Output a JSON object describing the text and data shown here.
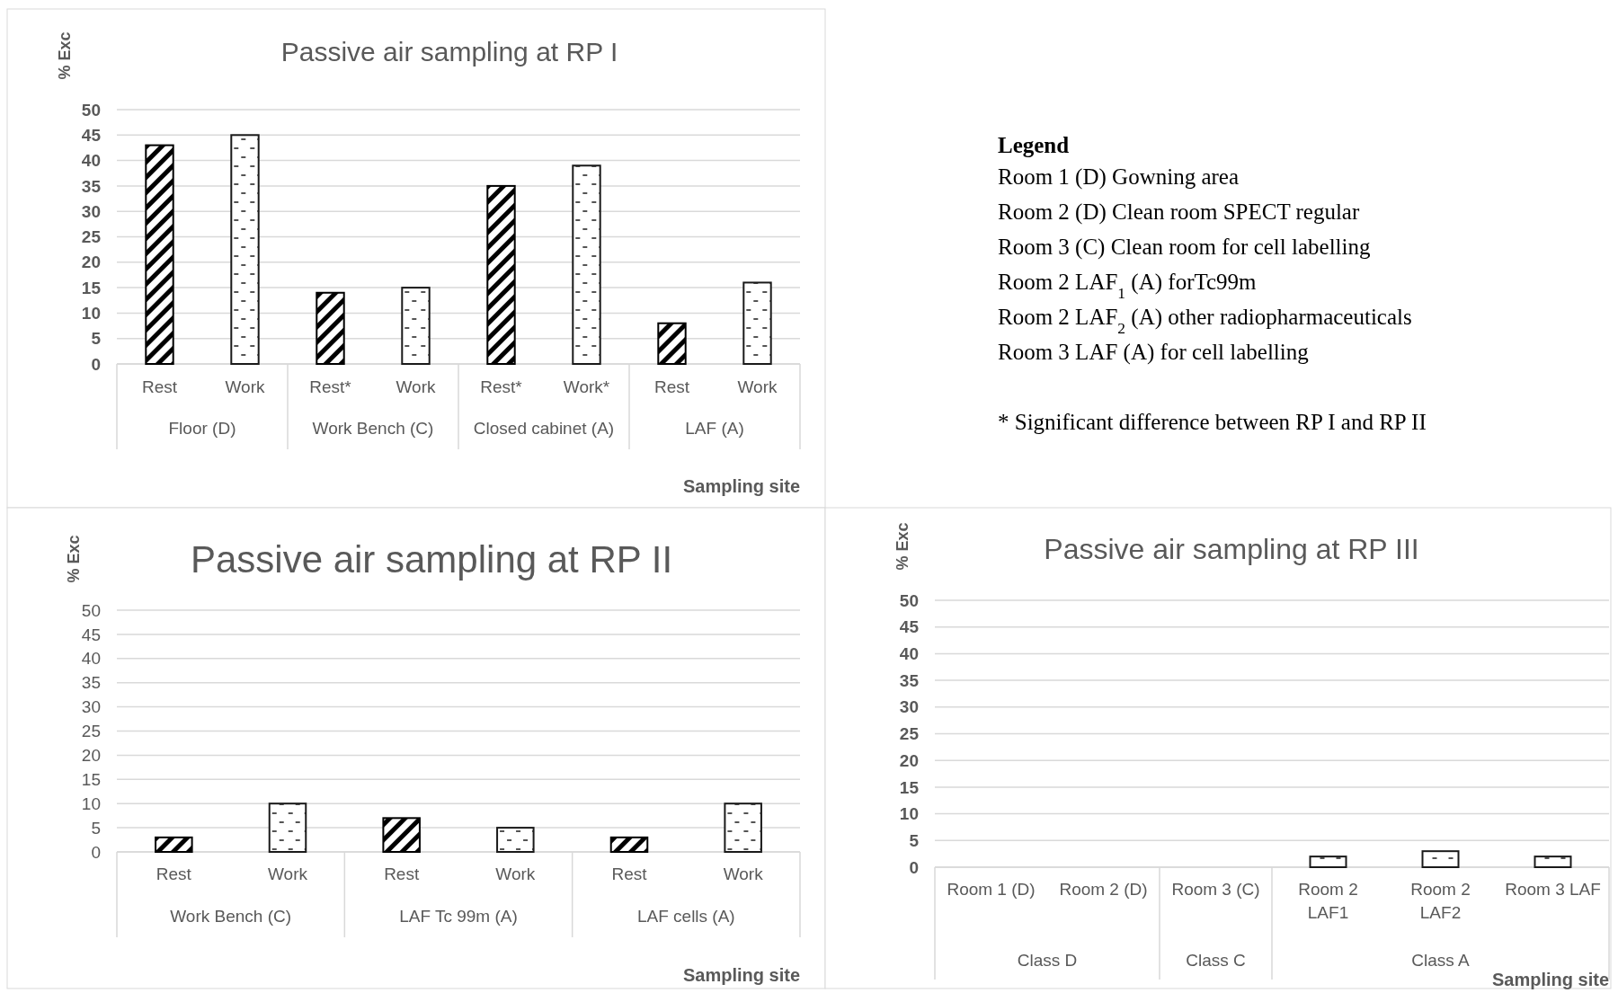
{
  "chart_data": [
    {
      "type": "bar",
      "title": "Passive air sampling at RP I",
      "xlabel": "Sampling site",
      "ylabel": "% Exc",
      "categories": [
        "Rest",
        "Work",
        "Rest*",
        "Work",
        "Rest*",
        "Work*",
        "Rest",
        "Work"
      ],
      "values": [
        43,
        45,
        14,
        15,
        35,
        39,
        8,
        16
      ],
      "colors": [
        "#000000",
        "#1a1a1a",
        "#000000",
        "#1a1a1a",
        "#000000",
        "#1a1a1a",
        "#000000",
        "#1a1a1a"
      ],
      "ylim": [
        0,
        50
      ],
      "yticks": [
        0,
        5,
        10,
        15,
        20,
        25,
        30,
        35,
        40,
        45,
        50
      ],
      "grid": "y",
      "annotations": [
        "Floor (D)",
        "Work Bench (C)",
        "Closed cabinet (A)",
        "LAF (A)"
      ]
    },
    {
      "type": "bar",
      "title": "Passive air sampling at RP II",
      "xlabel": "Sampling site",
      "ylabel": "% Exc",
      "categories": [
        "Rest",
        "Work",
        "Rest",
        "Work",
        "Rest",
        "Work"
      ],
      "values": [
        3,
        10,
        7,
        5,
        3,
        10
      ],
      "colors": [
        "#000000",
        "#1a1a1a",
        "#000000",
        "#1a1a1a",
        "#000000",
        "#1a1a1a"
      ],
      "ylim": [
        0,
        50
      ],
      "yticks": [
        0,
        5,
        10,
        15,
        20,
        25,
        30,
        35,
        40,
        45,
        50
      ],
      "grid": "y",
      "annotations": [
        "Work Bench (C)",
        "LAF Tc 99m (A)",
        "LAF cells (A)"
      ]
    },
    {
      "type": "other",
      "title": "Legend",
      "annotations": [
        "Room 1 (D) Gowning area",
        "Room 2 (D) Clean room SPECT regular",
        "Room 3 (C) Clean room for cell labelling",
        "Room 2 LAF$_{1}$ (A) forTc99m",
        "Room 2 LAF$_{2}$ (A) other radiopharmaceuticals",
        "Room 3 LAF (A) for cell labelling",
        "* Significant difference between RP I and RP II"
      ]
    },
    {
      "type": "bar",
      "title": "Passive air sampling at RP III",
      "xlabel": "Sampling site",
      "ylabel": "% Exc",
      "categories": [
        "Room 1 (D)",
        "Room 2 (D)",
        "Room 3 (C)",
        "Room 2 LAF1",
        "Room 2 LAF2",
        "Room 3 LAF"
      ],
      "values": [
        0,
        0,
        0,
        2,
        3,
        2
      ],
      "colors": [
        "#1a1a1a",
        "#1a1a1a",
        "#1a1a1a",
        "#1a1a1a",
        "#1a1a1a",
        "#1a1a1a"
      ],
      "ylim": [
        0,
        50
      ],
      "yticks": [
        0,
        5,
        10,
        15,
        20,
        25,
        30,
        35,
        40,
        45,
        50
      ],
      "grid": "y",
      "annotations": [
        "Class D",
        "Class C",
        "Class A"
      ]
    }
  ]
}
